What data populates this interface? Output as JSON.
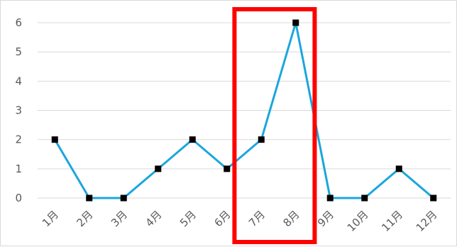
{
  "chart_data": {
    "type": "line",
    "categories": [
      "1月",
      "2月",
      "3月",
      "4月",
      "5月",
      "6月",
      "7月",
      "8月",
      "9月",
      "10月",
      "11月",
      "12月"
    ],
    "series": [
      {
        "values": [
          2,
          0,
          0,
          1,
          2,
          1,
          2,
          6,
          0,
          0,
          1,
          0
        ]
      }
    ],
    "yticks": [
      "0",
      "1",
      "2",
      "3",
      "4",
      "5",
      "6"
    ],
    "ylim": [
      0,
      6
    ],
    "grid": true,
    "legend": "none",
    "highlight": {
      "range": [
        "7月",
        "8月"
      ]
    }
  },
  "colors": {
    "line": "#1aa6dd",
    "marker": "#000000",
    "grid": "#d9d9d9",
    "highlight": "#ff0000",
    "text": "#595959"
  }
}
